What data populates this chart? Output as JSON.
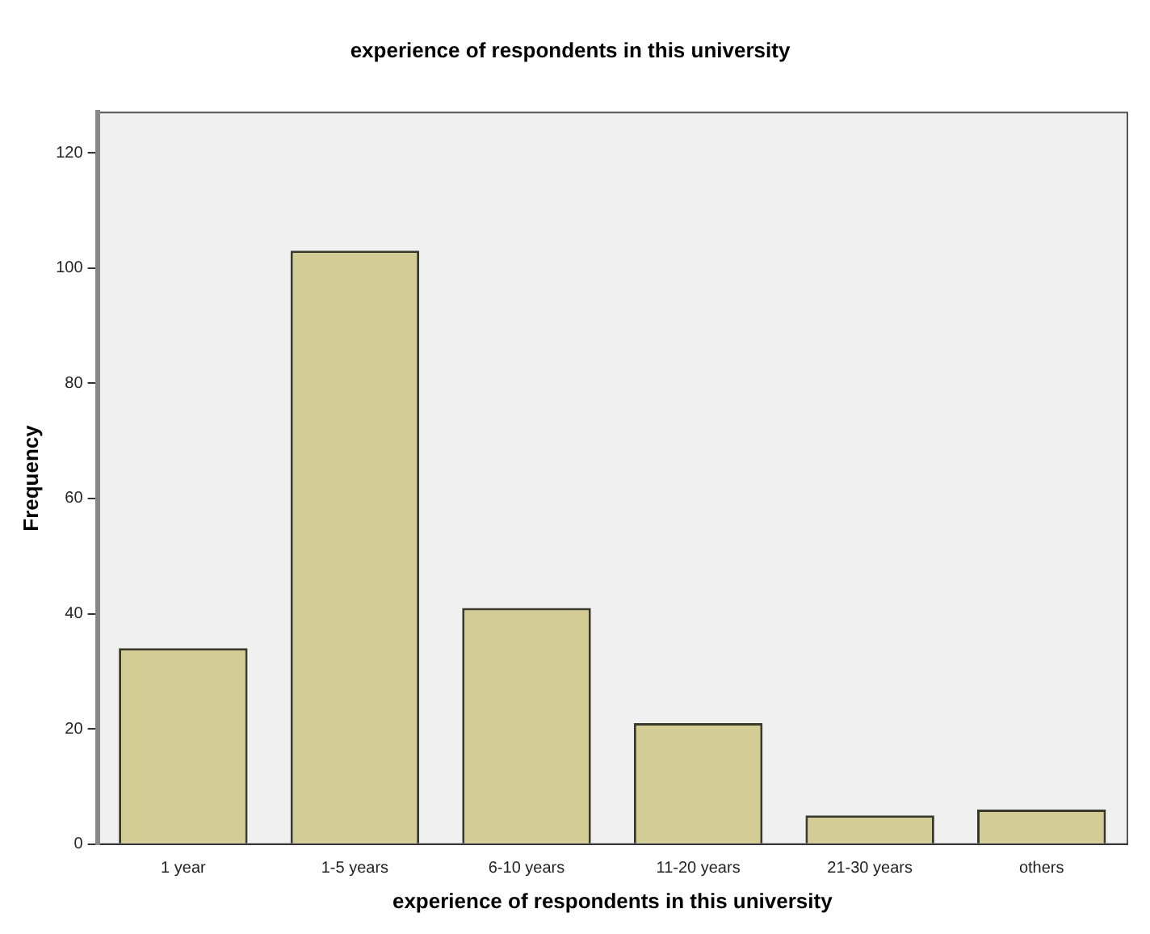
{
  "chart_data": {
    "type": "bar",
    "title": "experience of respondents in this university",
    "xlabel": "experience of respondents in this university",
    "ylabel": "Frequency",
    "categories": [
      "1 year",
      "1-5 years",
      "6-10 years",
      "11-20 years",
      "21-30 years",
      "others"
    ],
    "values": [
      34,
      103,
      41,
      21,
      5,
      6
    ],
    "color": "#d3cd95",
    "ylim": [
      0,
      127
    ],
    "yticks": [
      0,
      20,
      40,
      60,
      80,
      100,
      120
    ],
    "grid": false,
    "legend": false
  }
}
